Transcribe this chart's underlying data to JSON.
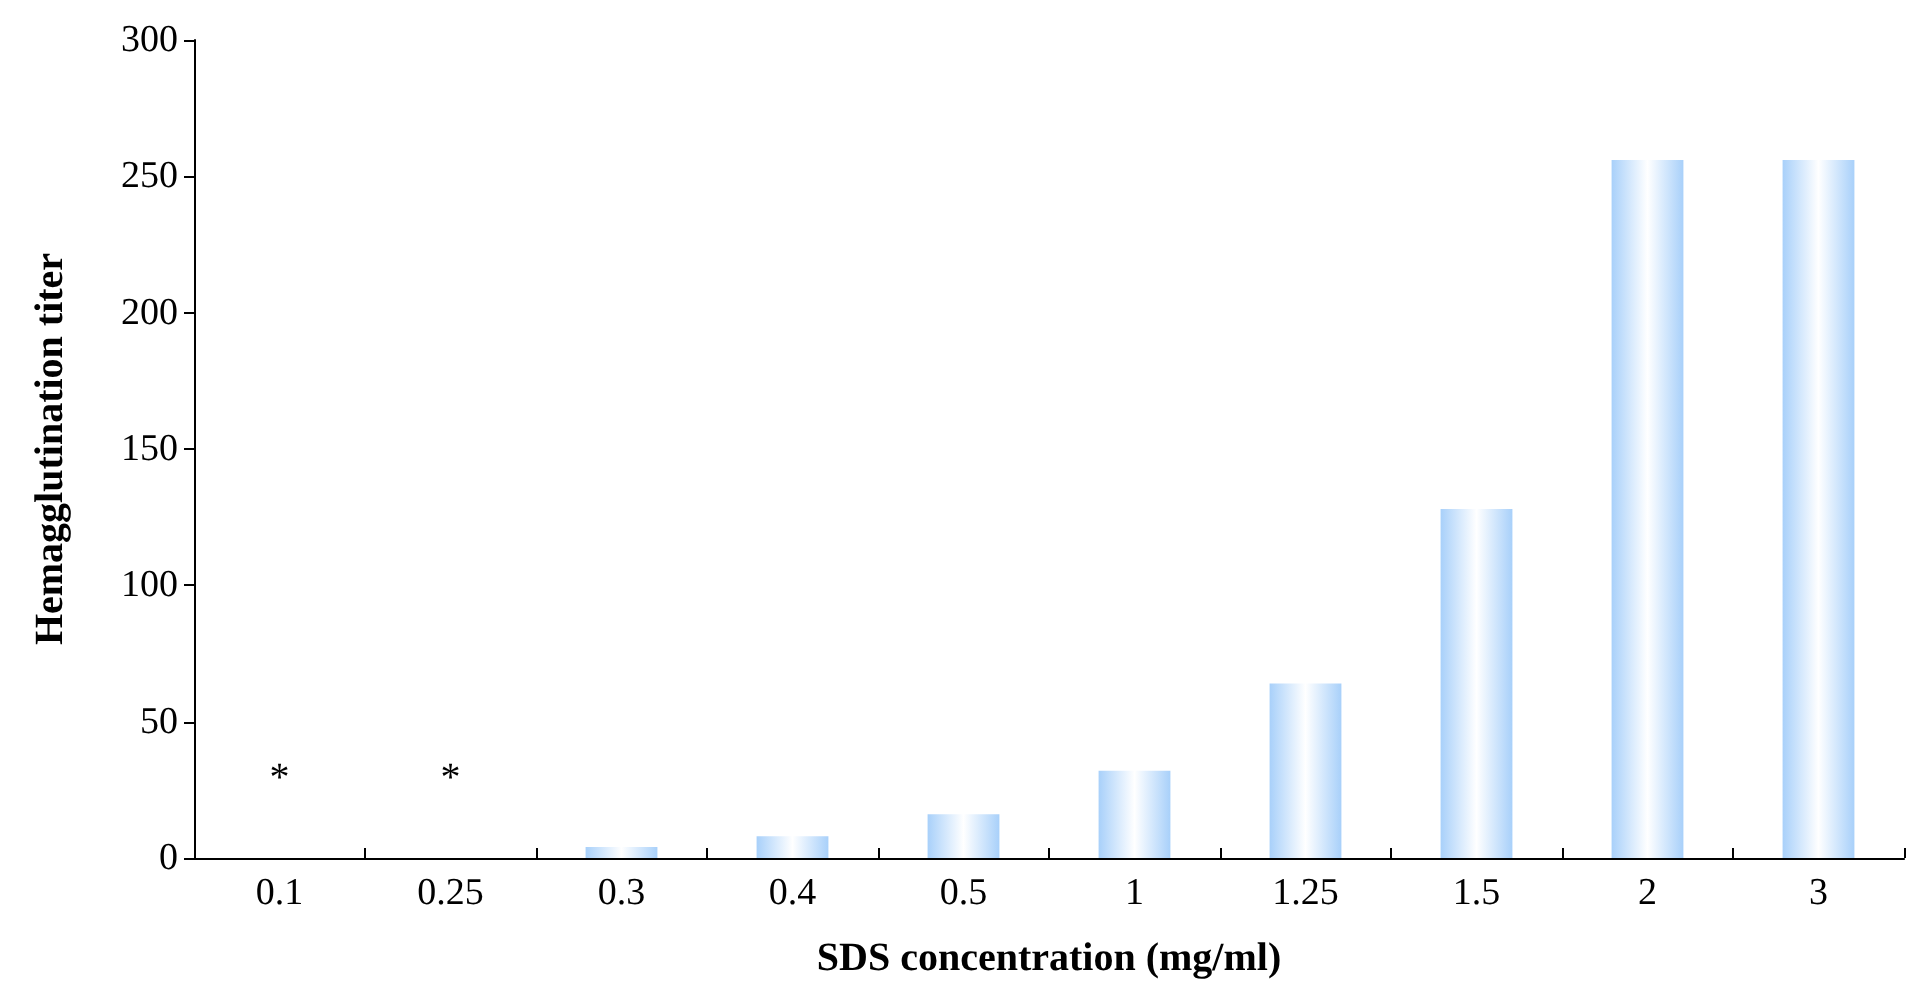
{
  "chart_data": {
    "type": "bar",
    "xlabel": "SDS concentration (mg/ml)",
    "ylabel": "Hemagglutination titer",
    "categories": [
      "0.1",
      "0.25",
      "0.3",
      "0.4",
      "0.5",
      "1",
      "1.25",
      "1.5",
      "2",
      "3"
    ],
    "values": [
      0,
      0,
      4,
      8,
      16,
      32,
      64,
      128,
      256,
      256
    ],
    "value_labels": [
      "*",
      "*",
      null,
      null,
      null,
      null,
      null,
      null,
      null,
      null
    ],
    "color": "#a8d0fa",
    "ylim": [
      0,
      300
    ],
    "yticks": [
      0,
      50,
      100,
      150,
      200,
      250,
      300
    ],
    "grid": false
  }
}
